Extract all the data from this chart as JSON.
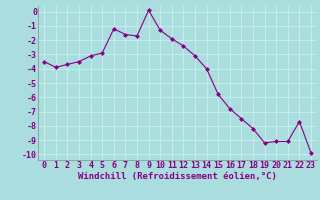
{
  "x": [
    0,
    1,
    2,
    3,
    4,
    5,
    6,
    7,
    8,
    9,
    10,
    11,
    12,
    13,
    14,
    15,
    16,
    17,
    18,
    19,
    20,
    21,
    22,
    23
  ],
  "y": [
    -3.5,
    -3.9,
    -3.7,
    -3.5,
    -3.1,
    -2.9,
    -1.2,
    -1.6,
    -1.7,
    0.1,
    -1.3,
    -1.9,
    -2.4,
    -3.1,
    -4.0,
    -5.8,
    -6.8,
    -7.5,
    -8.2,
    -9.2,
    -9.1,
    -9.1,
    -7.7,
    -9.9
  ],
  "line_color": "#880088",
  "marker": "D",
  "marker_size": 2,
  "bg_color": "#aadddd",
  "grid_color": "#cceeee",
  "xlabel": "Windchill (Refroidissement éolien,°C)",
  "xlabel_color": "#880088",
  "tick_color": "#880088",
  "ylim": [
    -10.4,
    0.4
  ],
  "xlim": [
    -0.5,
    23.5
  ],
  "yticks": [
    0,
    -1,
    -2,
    -3,
    -4,
    -5,
    -6,
    -7,
    -8,
    -9,
    -10
  ],
  "xticks": [
    0,
    1,
    2,
    3,
    4,
    5,
    6,
    7,
    8,
    9,
    10,
    11,
    12,
    13,
    14,
    15,
    16,
    17,
    18,
    19,
    20,
    21,
    22,
    23
  ],
  "tick_fontsize": 6,
  "xlabel_fontsize": 6.5
}
